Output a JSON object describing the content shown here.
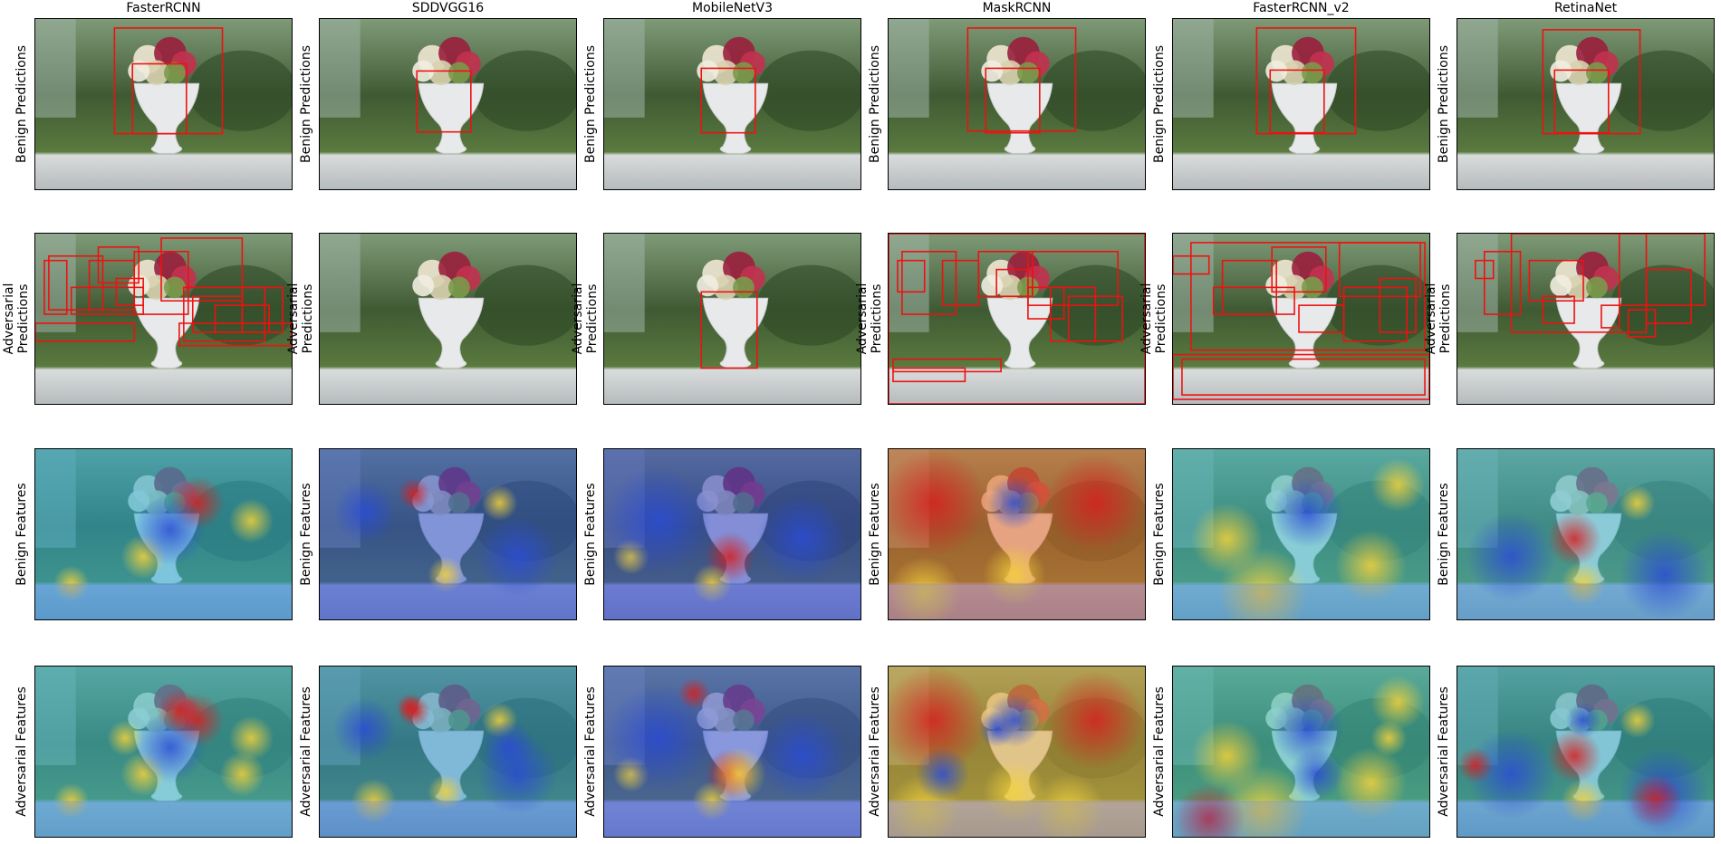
{
  "models": [
    "FasterRCNN",
    "SDDVGG16",
    "MobileNetV3",
    "MaskRCNN",
    "FasterRCNN_v2",
    "RetinaNet"
  ],
  "rows": [
    {
      "key": "benign_predictions",
      "label_lines": [
        "Benign Predictions"
      ],
      "type": "predictions"
    },
    {
      "key": "adversarial_predictions",
      "label_lines": [
        "Adversarial",
        "Predictions"
      ],
      "type": "predictions"
    },
    {
      "key": "benign_features",
      "label_lines": [
        "Benign Features"
      ],
      "type": "features"
    },
    {
      "key": "adversarial_features",
      "label_lines": [
        "Adversarial Features"
      ],
      "type": "features"
    }
  ],
  "colors": {
    "box": "#ee1111",
    "heat_hot": "#d61f1f",
    "heat_warm": "#f3d23a",
    "heat_cool": "#2b4cd4",
    "heat_mid": "#36c9b8"
  },
  "heat_tint": {
    "benign_features": [
      "#27a7cf",
      "#2f4fc9",
      "#3243c4",
      "#e46a2a",
      "#3bb6c2",
      "#40b3c9"
    ],
    "adversarial_features": [
      "#35b3c9",
      "#2b8fc8",
      "#3d55cf",
      "#dca63a",
      "#3bb8b6",
      "#2fa8c3"
    ]
  }
}
